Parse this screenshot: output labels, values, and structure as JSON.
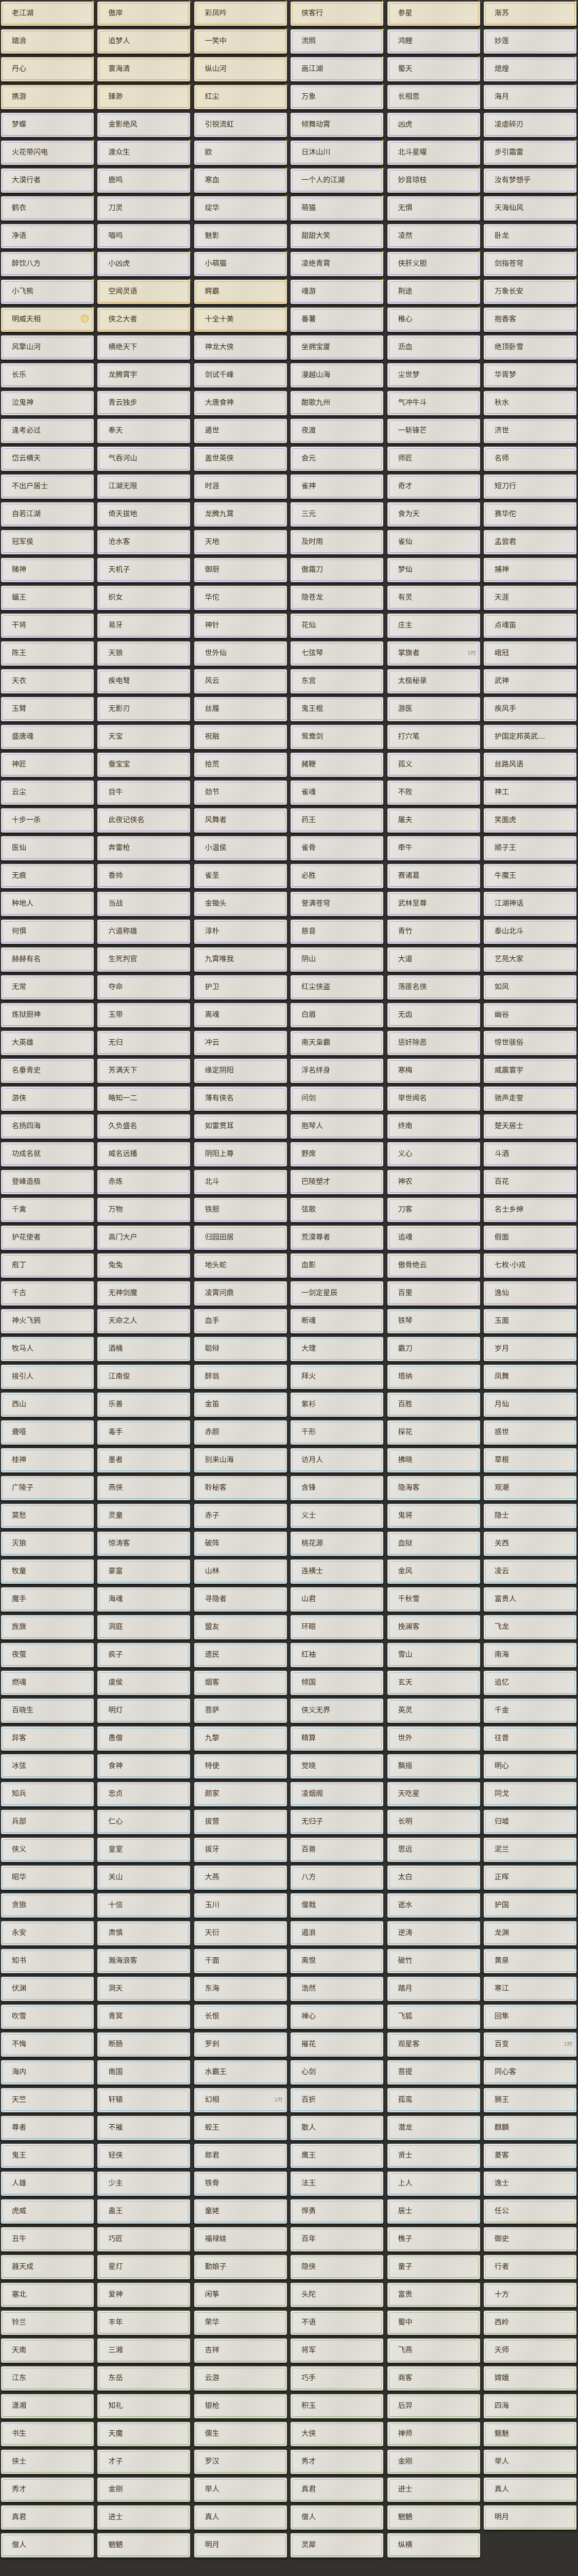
{
  "tier_colors": {
    "y": "#d4b36d",
    "p": "#b8a6d6",
    "b": "#97bfd3",
    "g": "#a7bd8f"
  },
  "rows": [
    [
      "老江湖",
      "傲岸",
      "彩凤吟",
      "侠客行",
      "参星",
      "渐苏"
    ],
    [
      "踏浪",
      "追梦人",
      "一笑中",
      "流照",
      "鸿鲤",
      "妙莲"
    ],
    [
      "丹心",
      "寰海清",
      "纵山河",
      "画江湖",
      "蜀天",
      "熄煌"
    ],
    [
      "携游",
      "臻渺",
      "红尘",
      "万象",
      "长相思",
      "海月"
    ],
    [
      "梦蝶",
      "金影绝风",
      "引锐流虹",
      "倾舞动霄",
      "凶虎",
      "凌虐碎刃"
    ],
    [
      "火花带闪电",
      "渡众生",
      "欧",
      "日沐山川",
      "北斗星曜",
      "步引霜雷"
    ],
    [
      "大漠行者",
      "鹿鸣",
      "寒血",
      "一个人的江湖",
      "妙音琼枝",
      "汝有梦想乎"
    ],
    [
      "鹤衣",
      "刀灵",
      "绽华",
      "萌猫",
      "无惧",
      "天海仙风"
    ],
    [
      "净语",
      "喵呜",
      "魅影",
      "甜甜大笑",
      "凌然",
      "卧龙"
    ],
    [
      "醉饮八方",
      "小凶虎",
      "小萌猫",
      "凌绝青霄",
      "侠肝义胆",
      "剑指苍穹"
    ],
    [
      "小飞熊",
      "空闻灵语",
      "鳄霸",
      "魂游",
      "荆途",
      "万象长安"
    ],
    [
      "明威天相",
      "侠之大者",
      "十全十美",
      "番薯",
      "稚心",
      "抱香客"
    ],
    [
      "风擎山河",
      "横绝天下",
      "神龙大侠",
      "坐拥宝厦",
      "沥血",
      "绝顶卧雪"
    ],
    [
      "长乐",
      "龙腾霄宇",
      "剑试千峰",
      "漫越山海",
      "尘世梦",
      "华胥梦"
    ],
    [
      "泣鬼神",
      "青云独步",
      "大唐食神",
      "酣歌九州",
      "气冲牛斗",
      "秋水"
    ],
    [
      "逢考必过",
      "奉天",
      "遁世",
      "夜渡",
      "一斩锋芒",
      "济世"
    ],
    [
      "岱云横天",
      "气吞河山",
      "盖世英侠",
      "会元",
      "师匠",
      "名师"
    ],
    [
      "不出户居士",
      "江湖无限",
      "时涯",
      "雀神",
      "奇才",
      "短刀行"
    ],
    [
      "自若江湖",
      "倚天拔地",
      "龙腾九霄",
      "三元",
      "食为天",
      "赛华佗"
    ],
    [
      "冠军侯",
      "沧水客",
      "天地",
      "及时雨",
      "雀仙",
      "孟尝君"
    ],
    [
      "赌神",
      "天机子",
      "御厨",
      "傲霜刀",
      "梦仙",
      "捕神"
    ],
    [
      "蝠王",
      "织女",
      "华佗",
      "隐苍龙",
      "有灵",
      "天涯"
    ],
    [
      "干将",
      "易牙",
      "神针",
      "花仙",
      "庄主",
      "点魂笛"
    ],
    [
      "陈王",
      "天狼",
      "世外仙",
      "七弦琴",
      "掌旗者",
      "峨冠"
    ],
    [
      "天衣",
      "疾电弩",
      "风云",
      "东宫",
      "太极秘录",
      "武神"
    ],
    [
      "玉臂",
      "无影刃",
      "丝履",
      "鬼王棍",
      "游医",
      "疾风手"
    ],
    [
      "盛唐魂",
      "天宝",
      "祝融",
      "鸳鸯剑",
      "打穴笔",
      "护国定邦英武…"
    ],
    [
      "神匠",
      "蚕宝宝",
      "拾荒",
      "赭鞭",
      "孤义",
      "丝路风语"
    ],
    [
      "云尘",
      "目牛",
      "劲节",
      "雀魂",
      "不败",
      "神工"
    ],
    [
      "十步一杀",
      "此夜记侠名",
      "风舞者",
      "药王",
      "屠夫",
      "笑面虎"
    ],
    [
      "医仙",
      "奔雷枪",
      "小温侯",
      "雀骨",
      "牵牛",
      "顺子王"
    ],
    [
      "无痕",
      "香帅",
      "雀圣",
      "必胜",
      "赛诸葛",
      "牛魔王"
    ],
    [
      "种地人",
      "当战",
      "金锄头",
      "誉满苍穹",
      "武林至尊",
      "江湖神话"
    ],
    [
      "何惧",
      "六道称雄",
      "淳朴",
      "慈音",
      "青竹",
      "泰山北斗"
    ],
    [
      "赫赫有名",
      "生死判官",
      "九霄唯我",
      "阴山",
      "大道",
      "艺苑大家"
    ],
    [
      "无常",
      "夺命",
      "护卫",
      "红尘侠盗",
      "荡匪名侠",
      "如风"
    ],
    [
      "炼狱厨神",
      "玉带",
      "离魂",
      "白眉",
      "无齿",
      "幽谷"
    ],
    [
      "大英雄",
      "无归",
      "冲云",
      "南天枭霸",
      "惩奸除恶",
      "惊世骇俗"
    ],
    [
      "名垂青史",
      "芳满天下",
      "缘定阴阳",
      "浮名绊身",
      "寒梅",
      "威震寰宇"
    ],
    [
      "游侠",
      "略知一二",
      "薄有侠名",
      "问剑",
      "举世闻名",
      "驰声走誉"
    ],
    [
      "名扬四海",
      "久负盛名",
      "如雷贯耳",
      "抱琴人",
      "终南",
      "楚天居士"
    ],
    [
      "功成名就",
      "威名远播",
      "阴阳上尊",
      "野席",
      "义心",
      "斗酒"
    ],
    [
      "登峰造极",
      "赤炼",
      "北斗",
      "巴陵塑才",
      "神农",
      "百花"
    ],
    [
      "千禽",
      "万物",
      "铁胆",
      "弦歌",
      "刀客",
      "名士乡绅"
    ],
    [
      "护花使者",
      "高门大户",
      "归园田居",
      "荒漠尊者",
      "追魂",
      "假面"
    ],
    [
      "庖丁",
      "兔兔",
      "地头蛇",
      "血影",
      "傲骨绝云",
      "七枚·小戎"
    ],
    [
      "千古",
      "无神剑魔",
      "凌霄问鼎",
      "一剑定星辰",
      "百里",
      "逸仙"
    ],
    [
      "神火飞鸦",
      "天命之人",
      "血手",
      "断魂",
      "铁琴",
      "玉面"
    ],
    [
      "牧马人",
      "酒桶",
      "聪辩",
      "大理",
      "霸刀",
      "岁月"
    ],
    [
      "接引人",
      "江南俊",
      "醉翁",
      "拜火",
      "塔纳",
      "凤舞"
    ],
    [
      "西山",
      "乐善",
      "金笛",
      "紫衫",
      "百胜",
      "月仙"
    ],
    [
      "聋哑",
      "毒手",
      "赤颜",
      "千形",
      "探花",
      "惑世"
    ],
    [
      "桂神",
      "墨者",
      "别来山海",
      "访月人",
      "拂晓",
      "草根"
    ],
    [
      "广陵子",
      "燕侠",
      "聆秘客",
      "含锋",
      "隐海客",
      "观潮"
    ],
    [
      "莫愁",
      "灵童",
      "赤子",
      "义士",
      "鬼将",
      "隐士"
    ],
    [
      "灭狼",
      "惊涛客",
      "破阵",
      "桃花源",
      "血狱",
      "关西"
    ],
    [
      "牧童",
      "豪富",
      "山林",
      "连横士",
      "金风",
      "凌云"
    ],
    [
      "魔手",
      "海魂",
      "寻隐者",
      "山君",
      "千秋雪",
      "富贵人"
    ],
    [
      "旌旗",
      "洞庭",
      "盟友",
      "环眼",
      "挽澜客",
      "飞龙"
    ],
    [
      "夜萤",
      "疯子",
      "遗民",
      "红袖",
      "雪山",
      "南海"
    ],
    [
      "燃魂",
      "虞侯",
      "烟客",
      "倾国",
      "玄天",
      "追忆"
    ],
    [
      "百晓生",
      "明灯",
      "菩萨",
      "侠义无界",
      "英灵",
      "千金"
    ],
    [
      "异客",
      "愚僧",
      "九黎",
      "精算",
      "世外",
      "往昔"
    ],
    [
      "冰弦",
      "食神",
      "特使",
      "觉晓",
      "飘摇",
      "明心"
    ],
    [
      "知兵",
      "忠贞",
      "颜家",
      "凌烟阁",
      "天吃星",
      "同戈"
    ],
    [
      "兵部",
      "仁心",
      "拔营",
      "无归子",
      "长明",
      "归墟"
    ],
    [
      "侠义",
      "皇室",
      "拔牙",
      "百兽",
      "思远",
      "泥兰"
    ],
    [
      "昭华",
      "关山",
      "大燕",
      "八方",
      "太白",
      "正晖"
    ],
    [
      "贪狼",
      "十信",
      "玉川",
      "偃戟",
      "逝水",
      "护国"
    ],
    [
      "永安",
      "肃慎",
      "天衍",
      "遏浪",
      "逆涛",
      "龙渊"
    ],
    [
      "知书",
      "瀚海浪客",
      "千面",
      "离恨",
      "破竹",
      "黄泉"
    ],
    [
      "伏渊",
      "洞天",
      "东海",
      "浩然",
      "踏月",
      "寒江"
    ],
    [
      "吹雪",
      "青冥",
      "长恨",
      "禅心",
      "飞狐",
      "回隼"
    ],
    [
      "不悔",
      "断肠",
      "罗刹",
      "摧花",
      "观星客",
      "百变"
    ],
    [
      "海内",
      "南国",
      "水霸王",
      "心剑",
      "菩提",
      "同心客"
    ],
    [
      "天竺",
      "轩辕",
      "幻相",
      "百折",
      "孤鸾",
      "狮王"
    ],
    [
      "尊者",
      "不摧",
      "蛟王",
      "散人",
      "潜龙",
      "麒麟"
    ],
    [
      "鬼王",
      "轻侠",
      "郎君",
      "鹰王",
      "贤士",
      "菱客"
    ],
    [
      "人雄",
      "少主",
      "铁骨",
      "法王",
      "上人",
      "逸士"
    ],
    [
      "虎威",
      "蛊王",
      "童姥",
      "悍勇",
      "居士",
      "任公"
    ],
    [
      "丑牛",
      "巧匠",
      "福禄娃",
      "百年",
      "樵子",
      "御史"
    ],
    [
      "器天成",
      "星灯",
      "勤娘子",
      "隐侠",
      "童子",
      "行者"
    ],
    [
      "塞北",
      "爱神",
      "闲筝",
      "头陀",
      "富贵",
      "十方"
    ],
    [
      "铃兰",
      "丰年",
      "荣华",
      "不语",
      "蜀中",
      "西岭"
    ],
    [
      "天南",
      "三湘",
      "吉祥",
      "将军",
      "飞燕",
      "天师"
    ],
    [
      "江东",
      "东岳",
      "云游",
      "巧手",
      "商客",
      "嫦娥"
    ],
    [
      "潇湘",
      "知礼",
      "银枪",
      "积玉",
      "后羿",
      "四海"
    ],
    [
      "书生",
      "天魔",
      "儒生",
      "大侠",
      "禅师",
      "魑魅"
    ],
    [
      "侠士",
      "才子",
      "罗汉",
      "秀才",
      "金刚",
      "举人"
    ],
    [
      "秀才",
      "金刚",
      "举人",
      "真君",
      "进士",
      "真人"
    ],
    [
      "真君",
      "进士",
      "真人",
      "僧人",
      "魍魉",
      "明月"
    ],
    [
      "僧人",
      "魍魉",
      "明月",
      "灵犀",
      "纵横"
    ]
  ],
  "tiers": {
    "default": "pppppp",
    "overrides": {
      "0": "yyyyyy",
      "1": "yyyppp",
      "2": "yyyppp",
      "3": "yyyppp",
      "10": "pyyppp",
      "11": "yyyppp",
      "47": "ppppbb",
      "79": "bbbbbg"
    },
    "blue_from": 48,
    "green_from": 80
  },
  "badges": [
    {
      "row": 11,
      "col": 0,
      "icon": "coin-icon"
    },
    {
      "row": 23,
      "col": 4,
      "text": "1时"
    },
    {
      "row": 73,
      "col": 5,
      "text": "1时"
    },
    {
      "row": 75,
      "col": 2,
      "text": "1时"
    }
  ]
}
